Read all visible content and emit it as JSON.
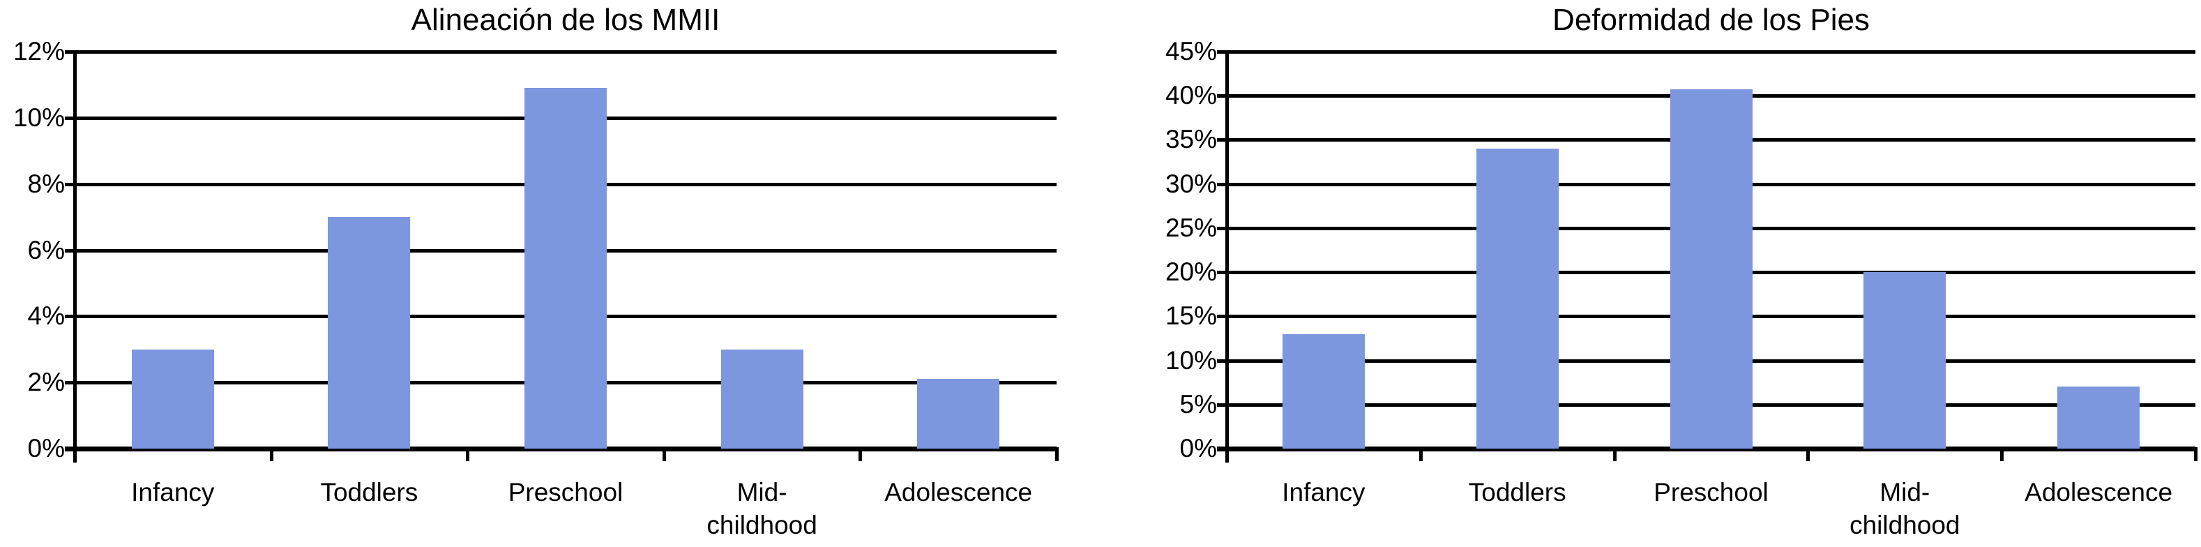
{
  "page": {
    "background": "#ffffff"
  },
  "chart_data": [
    {
      "type": "bar",
      "title": "Alineación de los MMII",
      "categories": [
        "Infancy",
        "Toddlers",
        "Preschool",
        "Mid-\nchildhood",
        "Adolescence"
      ],
      "values": [
        3,
        7,
        10.9,
        3,
        2.1
      ],
      "value_unit": "%",
      "ylim": [
        0,
        12
      ],
      "ytick_step": 2,
      "ytick_labels": [
        "0%",
        "2%",
        "4%",
        "6%",
        "8%",
        "10%",
        "12%"
      ],
      "xlabel": "",
      "ylabel": "",
      "grid": true,
      "legend": "none",
      "bar_color": "#7C97DE",
      "axis_color": "#000000"
    },
    {
      "type": "bar",
      "title": "Deformidad de los Pies",
      "categories": [
        "Infancy",
        "Toddlers",
        "Preschool",
        "Mid-\nchildhood",
        "Adolescence"
      ],
      "values": [
        13,
        34,
        40.7,
        20,
        7
      ],
      "value_unit": "%",
      "ylim": [
        0,
        45
      ],
      "ytick_step": 5,
      "ytick_labels": [
        "0%",
        "5%",
        "10%",
        "15%",
        "20%",
        "25%",
        "30%",
        "35%",
        "40%",
        "45%"
      ],
      "xlabel": "",
      "ylabel": "",
      "grid": true,
      "legend": "none",
      "bar_color": "#7C97DE",
      "axis_color": "#000000"
    }
  ]
}
